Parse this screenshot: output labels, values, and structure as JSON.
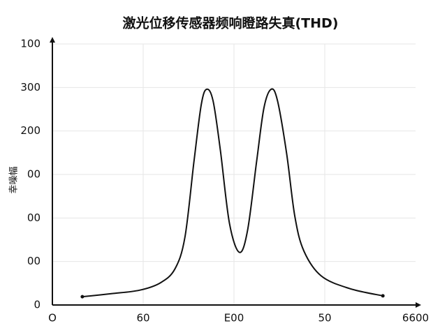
{
  "chart_data": {
    "type": "line",
    "title": "激光位移传感器频响瞪路失真(THD)",
    "y_label": "幸噪幅",
    "x": [
      0.33,
      0.65,
      0.96,
      1.19,
      1.35,
      1.46,
      1.56,
      1.64,
      1.7,
      1.77,
      1.85,
      1.95,
      2.06,
      2.15,
      2.25,
      2.33,
      2.41,
      2.48,
      2.58,
      2.67,
      2.77,
      2.96,
      3.27,
      3.64
    ],
    "series": [
      {
        "color": "#111111",
        "values": [
          0.19,
          0.26,
          0.34,
          0.51,
          0.83,
          1.56,
          3.31,
          4.61,
          4.96,
          4.69,
          3.56,
          1.88,
          1.21,
          1.72,
          3.31,
          4.53,
          4.96,
          4.69,
          3.48,
          2.04,
          1.24,
          0.67,
          0.38,
          0.21
        ]
      }
    ],
    "xlim": [
      0,
      4
    ],
    "ylim": [
      0,
      6
    ],
    "xticks": [
      {
        "value": 0,
        "label": "O"
      },
      {
        "value": 1,
        "label": "60"
      },
      {
        "value": 2,
        "label": "E00"
      },
      {
        "value": 3,
        "label": "50"
      },
      {
        "value": 4,
        "label": "6600"
      }
    ],
    "yticks": [
      0,
      {
        "value": 1,
        "label": "00"
      },
      {
        "value": 2,
        "label": "00"
      },
      {
        "value": 3,
        "label": "00"
      },
      {
        "value": 4,
        "label": "200"
      },
      {
        "value": 5,
        "label": "300"
      },
      {
        "value": 6,
        "label": "100"
      }
    ],
    "grid": true
  }
}
